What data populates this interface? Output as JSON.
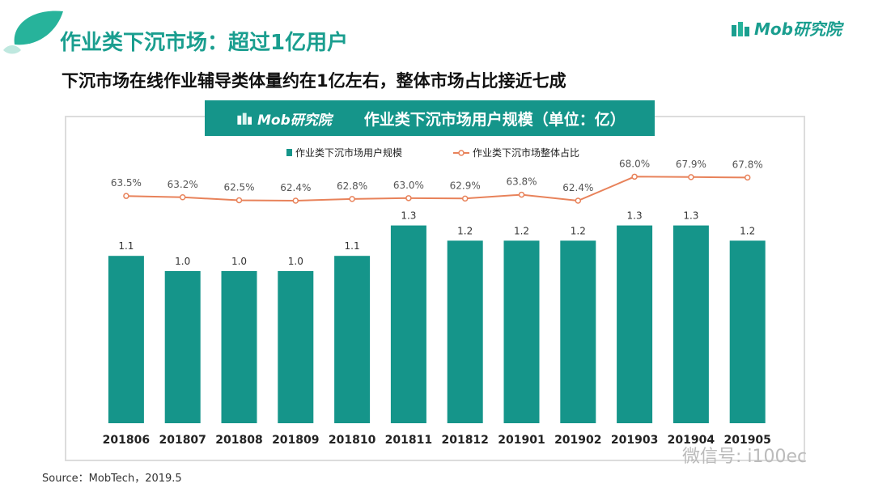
{
  "page": {
    "title": "作业类下沉市场：超过1亿用户",
    "subtitle": "下沉市场在线作业辅导类体量约在1亿左右，整体市场占比接近七成",
    "brand": "Mob研究院",
    "source": "Source：MobTech，2019.5",
    "watermark_text": "微信号: i100ec",
    "colors": {
      "accent": "#15958a",
      "bar": "#15958a",
      "line": "#e8825a"
    }
  },
  "chart_data": {
    "type": "bar",
    "title": "作业类下沉市场用户规模（单位：亿）",
    "header_brand": "Mob研究院",
    "categories": [
      "201806",
      "201807",
      "201808",
      "201809",
      "201810",
      "201811",
      "201812",
      "201901",
      "201902",
      "201903",
      "201904",
      "201905"
    ],
    "series": [
      {
        "name": "作业类下沉市场用户规模",
        "type": "bar",
        "values": [
          1.1,
          1.0,
          1.0,
          1.0,
          1.1,
          1.3,
          1.2,
          1.2,
          1.2,
          1.3,
          1.3,
          1.2
        ],
        "labels": [
          "1.1",
          "1.0",
          "1.0",
          "1.0",
          "1.1",
          "1.3",
          "1.2",
          "1.2",
          "1.2",
          "1.3",
          "1.3",
          "1.2"
        ]
      },
      {
        "name": "作业类下沉市场整体占比",
        "type": "line",
        "values": [
          63.5,
          63.2,
          62.5,
          62.4,
          62.8,
          63.0,
          62.9,
          63.8,
          62.4,
          68.0,
          67.9,
          67.8
        ],
        "labels": [
          "63.5%",
          "63.2%",
          "62.5%",
          "62.4%",
          "62.8%",
          "63.0%",
          "62.9%",
          "63.8%",
          "62.4%",
          "68.0%",
          "67.9%",
          "67.8%"
        ]
      }
    ],
    "legend_position": "top-center",
    "grid": false
  }
}
